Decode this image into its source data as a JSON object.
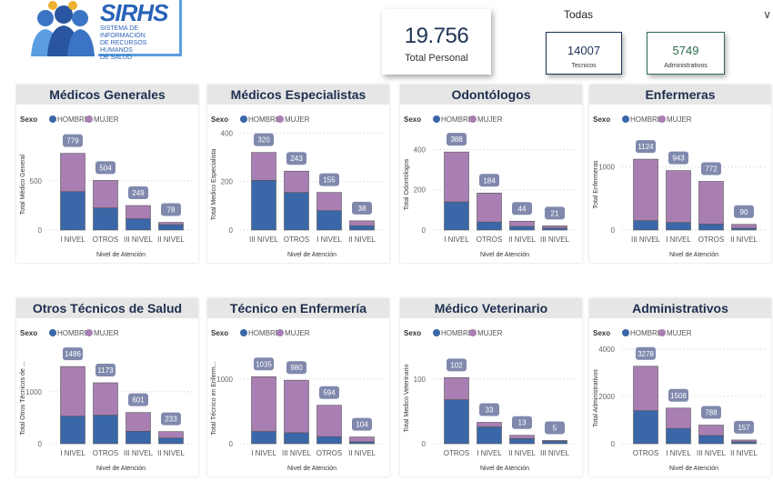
{
  "logo": {
    "title": "SIRHS",
    "subtitle": [
      "Sistema de Información",
      "de Recursos Humanos",
      "de Salud"
    ]
  },
  "kpis": {
    "total": {
      "value": "19.756",
      "label": "Total Personal"
    },
    "tecnicos": {
      "value": "14007",
      "label": "Tecnicos",
      "color": "#1e3355"
    },
    "administrativos": {
      "value": "5749",
      "label": "Administrativos",
      "color": "#2e6b4a"
    }
  },
  "filter": {
    "selected": "Todas",
    "icon": "chevron-down-icon"
  },
  "colors": {
    "hombre": "#3a67a8",
    "mujer": "#a97fb3",
    "label_bg": "#8089ad"
  },
  "legend": {
    "title": "Sexo",
    "items": [
      "HOMBRE",
      "MUJER"
    ]
  },
  "chart_data": [
    {
      "type": "bar",
      "stacked": true,
      "title": "Médicos Generales",
      "xlabel": "Nivel de Atención",
      "ylabel": "Total Médico General",
      "ylim": [
        0,
        960
      ],
      "yticks": [
        0,
        500
      ],
      "categories": [
        "I NIVEL",
        "OTROS",
        "III NIVEL",
        "II NIVEL"
      ],
      "totals": [
        779,
        504,
        249,
        78
      ],
      "series": [
        {
          "name": "HOMBRE",
          "values": [
            390,
            225,
            115,
            55
          ]
        },
        {
          "name": "MUJER",
          "values": [
            389,
            279,
            134,
            23
          ]
        }
      ]
    },
    {
      "type": "bar",
      "stacked": true,
      "title": "Médicos Especialistas",
      "xlabel": "Nivel de Atención",
      "ylabel": "Total Medico Especialista",
      "ylim": [
        0,
        390
      ],
      "yticks": [
        0,
        200,
        400
      ],
      "categories": [
        "III NIVEL",
        "OTROS",
        "I NIVEL",
        "II NIVEL"
      ],
      "totals": [
        320,
        243,
        155,
        38
      ],
      "series": [
        {
          "name": "HOMBRE",
          "values": [
            205,
            155,
            80,
            18
          ]
        },
        {
          "name": "MUJER",
          "values": [
            115,
            88,
            75,
            20
          ]
        }
      ]
    },
    {
      "type": "bar",
      "stacked": true,
      "title": "Odontólogos",
      "xlabel": "Nivel de Atención",
      "ylabel": "Total Odontólogos",
      "ylim": [
        0,
        470
      ],
      "yticks": [
        0,
        200,
        400
      ],
      "categories": [
        "I NIVEL",
        "OTROS",
        "II NIVEL",
        "III NIVEL"
      ],
      "totals": [
        388,
        184,
        44,
        21
      ],
      "series": [
        {
          "name": "HOMBRE",
          "values": [
            140,
            40,
            18,
            10
          ]
        },
        {
          "name": "MUJER",
          "values": [
            248,
            144,
            26,
            11
          ]
        }
      ]
    },
    {
      "type": "bar",
      "stacked": true,
      "title": "Enfermeras",
      "xlabel": "Nivel de Atención",
      "ylabel": "Total Enfermeras",
      "ylim": [
        0,
        1500
      ],
      "yticks": [
        0,
        1000
      ],
      "categories": [
        "III NIVEL",
        "I NIVEL",
        "OTROS",
        "II NIVEL"
      ],
      "totals": [
        1124,
        943,
        772,
        90
      ],
      "series": [
        {
          "name": "HOMBRE",
          "values": [
            150,
            120,
            95,
            30
          ]
        },
        {
          "name": "MUJER",
          "values": [
            974,
            823,
            677,
            60
          ]
        }
      ]
    },
    {
      "type": "bar",
      "stacked": true,
      "title": "Otros Técnicos de Salud",
      "xlabel": "Nivel de Atención",
      "ylabel": "Total Otros Técnicos de ...",
      "ylim": [
        0,
        1820
      ],
      "yticks": [
        0,
        1000
      ],
      "categories": [
        "I NIVEL",
        "OTROS",
        "III NIVEL",
        "II NIVEL"
      ],
      "totals": [
        1486,
        1173,
        601,
        233
      ],
      "series": [
        {
          "name": "HOMBRE",
          "values": [
            530,
            550,
            240,
            110
          ]
        },
        {
          "name": "MUJER",
          "values": [
            956,
            623,
            361,
            123
          ]
        }
      ]
    },
    {
      "type": "bar",
      "stacked": true,
      "title": "Técnico en Enfermería",
      "xlabel": "Nivel de Atención",
      "ylabel": "Total Técnico en Enferm...",
      "ylim": [
        0,
        1460
      ],
      "yticks": [
        0,
        1000
      ],
      "categories": [
        "I NIVEL",
        "III NIVEL",
        "OTROS",
        "II NIVEL"
      ],
      "totals": [
        1035,
        980,
        594,
        104
      ],
      "series": [
        {
          "name": "HOMBRE",
          "values": [
            190,
            170,
            110,
            30
          ]
        },
        {
          "name": "MUJER",
          "values": [
            845,
            810,
            484,
            74
          ]
        }
      ]
    },
    {
      "type": "bar",
      "stacked": true,
      "title": "Médico Veterinario",
      "xlabel": "Nivel de Atención",
      "ylabel": "Total Medico Veterinario",
      "ylim": [
        0,
        146
      ],
      "yticks": [
        0,
        100
      ],
      "categories": [
        "OTROS",
        "I NIVEL",
        "II NIVEL",
        "III NIVEL"
      ],
      "totals": [
        102,
        33,
        13,
        5
      ],
      "series": [
        {
          "name": "HOMBRE",
          "values": [
            68,
            26,
            8,
            4
          ]
        },
        {
          "name": "MUJER",
          "values": [
            34,
            7,
            5,
            1
          ]
        }
      ]
    },
    {
      "type": "bar",
      "stacked": true,
      "title": "Administrativos",
      "xlabel": "Nivel de Atención",
      "ylabel": "Total Administrativos",
      "ylim": [
        0,
        4000
      ],
      "yticks": [
        0,
        2000,
        4000
      ],
      "categories": [
        "OTROS",
        "I NIVEL",
        "III NIVEL",
        "II NIVEL"
      ],
      "totals": [
        3278,
        1508,
        788,
        157
      ],
      "series": [
        {
          "name": "HOMBRE",
          "values": [
            1400,
            650,
            350,
            80
          ]
        },
        {
          "name": "MUJER",
          "values": [
            1878,
            858,
            438,
            77
          ]
        }
      ]
    }
  ]
}
